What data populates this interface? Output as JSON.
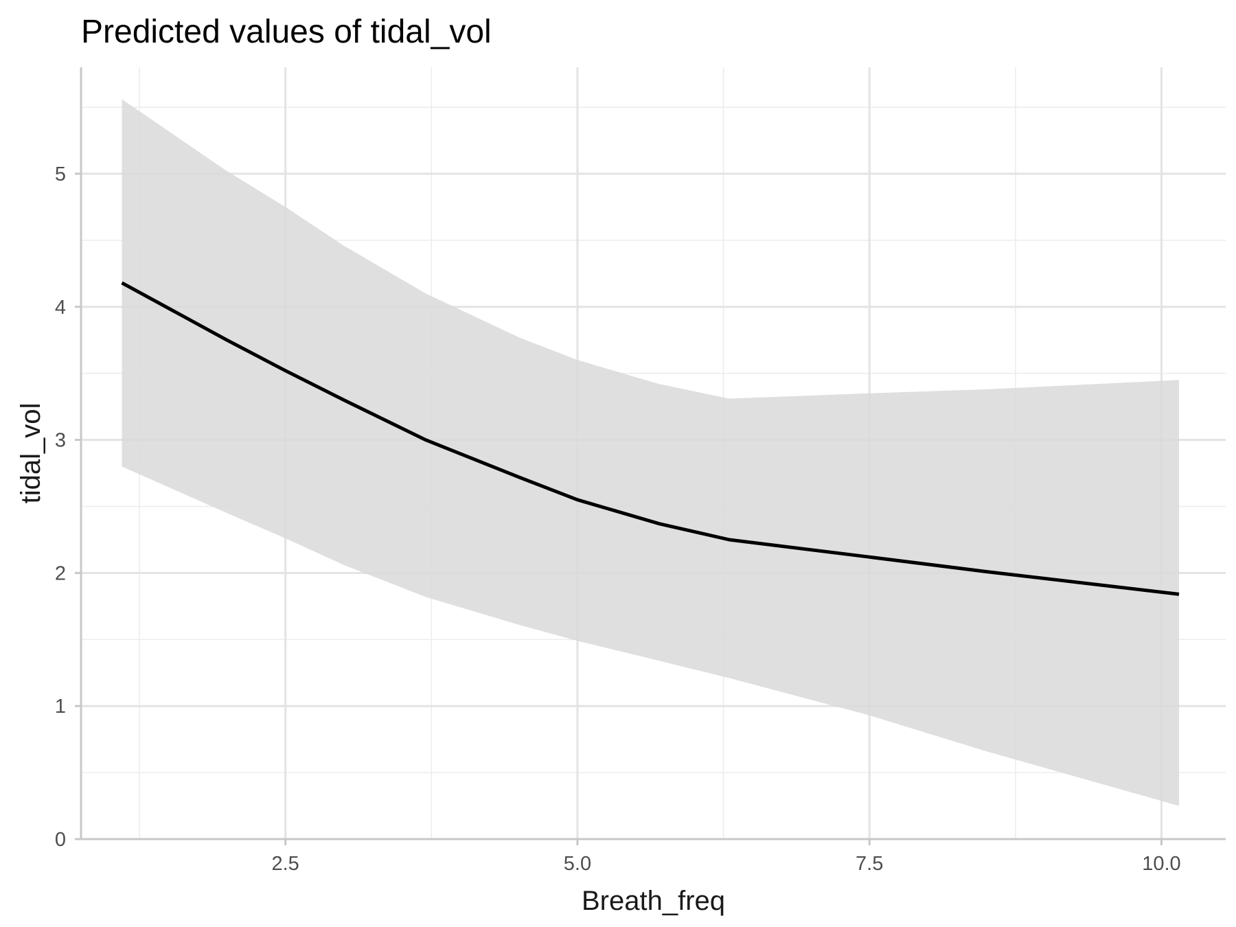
{
  "chart_data": {
    "type": "line",
    "title": "Predicted values of tidal_vol",
    "xlabel": "Breath_freq",
    "ylabel": "tidal_vol",
    "xlim": [
      0.75,
      10.55
    ],
    "ylim": [
      0,
      5.8
    ],
    "x_ticks": [
      2.5,
      5.0,
      7.5,
      10.0
    ],
    "x_tick_labels": [
      "2.5",
      "5.0",
      "7.5",
      "10.0"
    ],
    "y_ticks": [
      0,
      1,
      2,
      3,
      4,
      5
    ],
    "y_tick_labels": [
      "0",
      "1",
      "2",
      "3",
      "4",
      "5"
    ],
    "grid": true,
    "series": [
      {
        "type": "line",
        "color": "#000000",
        "x": [
          1.1,
          2.0,
          2.5,
          3.0,
          3.7,
          4.5,
          5.0,
          5.7,
          6.3,
          7.5,
          8.5,
          10.15
        ],
        "y": [
          4.18,
          3.75,
          3.52,
          3.3,
          3.0,
          2.72,
          2.55,
          2.37,
          2.25,
          2.12,
          2.01,
          1.84
        ]
      }
    ],
    "confidence_band": {
      "color": "#d9d9d9",
      "x": [
        1.1,
        2.0,
        2.5,
        3.0,
        3.7,
        4.5,
        5.0,
        5.7,
        6.3,
        7.5,
        8.5,
        10.15
      ],
      "upper": [
        5.56,
        5.02,
        4.75,
        4.46,
        4.1,
        3.77,
        3.6,
        3.42,
        3.31,
        3.35,
        3.38,
        3.45
      ],
      "lower": [
        2.8,
        2.45,
        2.26,
        2.06,
        1.82,
        1.61,
        1.49,
        1.34,
        1.21,
        0.93,
        0.66,
        0.25
      ]
    }
  }
}
